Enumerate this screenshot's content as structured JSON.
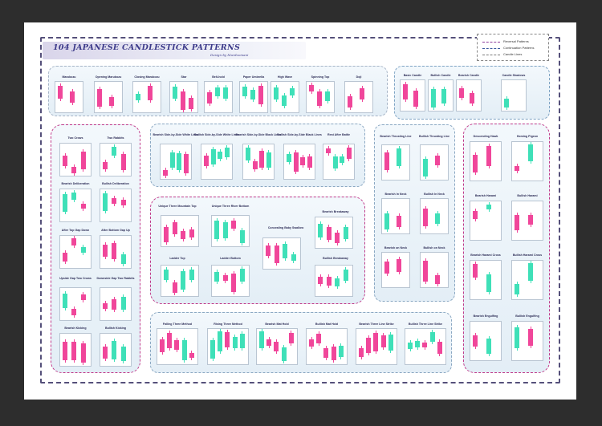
{
  "poster": {
    "title": "104 JAPANESE CANDLESTICK PATTERNS",
    "subtitle": "Design by Murdoomani",
    "legend": [
      {
        "label": "Reversal Patterns",
        "color": "#8b3a9b"
      },
      {
        "label": "Continuation Patterns",
        "color": "#3b5aa0"
      },
      {
        "label": "Candle Lines",
        "color": "#7b7b7b"
      }
    ],
    "colors": {
      "bullish": "#3fe0b8",
      "bearish": "#f0469a",
      "frame": "#2d2d2d",
      "title": "#3c3a8a"
    },
    "top_row": [
      "Marubozu",
      "Opening Marubozu",
      "Closing Marubozu",
      "Star",
      "Belt-hold",
      "Paper Umbrella",
      "High Wave",
      "Spinning Top",
      "Doji"
    ],
    "top_right": [
      "Basic Candle",
      "Bullish Candle",
      "Bearish Candle",
      "Candle Shadows"
    ],
    "left_col": [
      "Two Crows",
      "Two Rabbits",
      "Bearish Deliberation",
      "Bullish Deliberation",
      "After Top Gap Down",
      "After Bottom Gap Up",
      "Upside Gap Two Crows",
      "Downside Gap Two Rabbits",
      "Bearish Kicking",
      "Bullish Kicking"
    ],
    "mid_top": [
      "Bearish Side-by-Side White Lines",
      "Bullish Side-by-Side White Lines",
      "Bearish Side-by-Side Black Lines",
      "Bullish Side-by-Side Black Lines",
      "Rest After Battle"
    ],
    "mid_center": [
      "Unique Three Mountain Top",
      "Unique Three River Bottom",
      "Concealing Baby Swallow",
      "Bearish Breakaway",
      "Ladder Top",
      "Ladder Bottom",
      "Bullish Breakaway"
    ],
    "mid_bottom": [
      "Falling Three Method",
      "Rising Three Method",
      "Bearish Mat Hold",
      "Bullish Mat Hold",
      "Bearish Three Line Strike",
      "Bullish Three Line Strike"
    ],
    "thrust_col": [
      "Bearish Thrusting Line",
      "Bullish Thrusting Line",
      "Bearish In Neck",
      "Bullish In Neck",
      "Bearish on Neck",
      "Bullish on Neck"
    ],
    "right_col": [
      "Descending Hawk",
      "Homing Pigeon",
      "Bearish Harami",
      "Bullish Harami",
      "Bearish Harami Cross",
      "Bullish Harami Cross",
      "Bearish Engulfing",
      "Bullish Engulfing"
    ]
  }
}
